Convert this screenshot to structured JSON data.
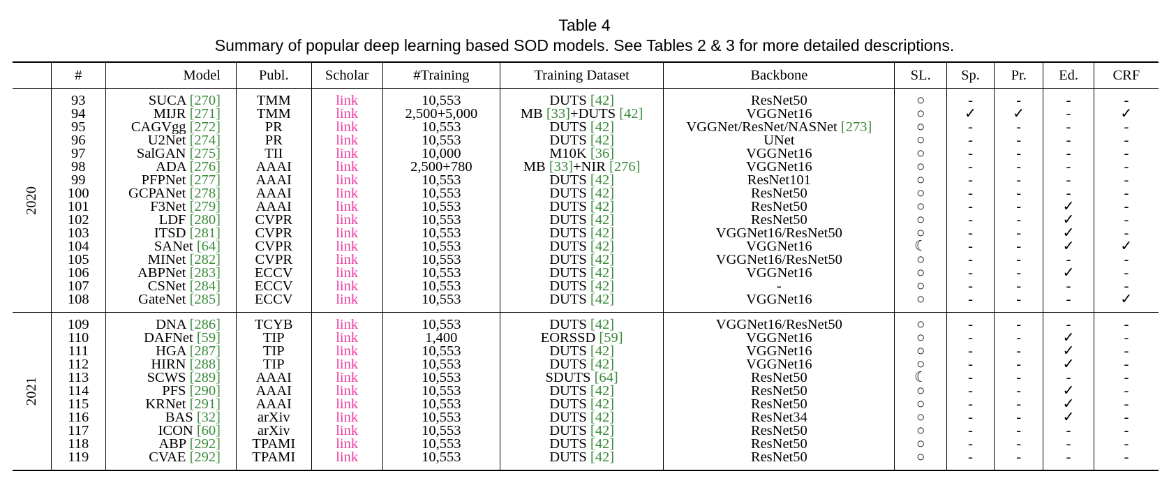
{
  "caption": {
    "title": "Table 4",
    "subtitle": "Summary of popular deep learning based SOD models. See Tables 2 & 3 for more detailed descriptions."
  },
  "headers": [
    "#",
    "Model",
    "Publ.",
    "Scholar",
    "#Training",
    "Training Dataset",
    "Backbone",
    "SL.",
    "Sp.",
    "Pr.",
    "Ed.",
    "CRF"
  ],
  "groups": [
    {
      "year": "2020",
      "rows": [
        {
          "n": "93",
          "model": "SUCA",
          "ref": "270",
          "publ": "TMM",
          "scholar": "link",
          "training": "10,553",
          "dataset": [
            [
              "DUTS ",
              ""
            ],
            [
              "[42]",
              "r"
            ]
          ],
          "backbone": [
            [
              "ResNet50",
              ""
            ]
          ],
          "sl": "○",
          "sp": "-",
          "pr": "-",
          "ed": "-",
          "crf": "-"
        },
        {
          "n": "94",
          "model": "MIJR",
          "ref": "271",
          "publ": "TMM",
          "scholar": "link",
          "training": "2,500+5,000",
          "dataset": [
            [
              "MB ",
              ""
            ],
            [
              "[33]",
              "r"
            ],
            [
              "+DUTS ",
              ""
            ],
            [
              "[42]",
              "r"
            ]
          ],
          "backbone": [
            [
              "VGGNet16",
              ""
            ]
          ],
          "sl": "○",
          "sp": "✓",
          "pr": "✓",
          "ed": "-",
          "crf": "✓"
        },
        {
          "n": "95",
          "model": "CAGVgg",
          "ref": "272",
          "publ": "PR",
          "scholar": "link",
          "training": "10,553",
          "dataset": [
            [
              "DUTS ",
              ""
            ],
            [
              "[42]",
              "r"
            ]
          ],
          "backbone": [
            [
              "VGGNet/ResNet/NASNet ",
              ""
            ],
            [
              "[273]",
              "r"
            ]
          ],
          "sl": "○",
          "sp": "-",
          "pr": "-",
          "ed": "-",
          "crf": "-"
        },
        {
          "n": "96",
          "model": "U2Net",
          "ref": "274",
          "publ": "PR",
          "scholar": "link",
          "training": "10,553",
          "dataset": [
            [
              "DUTS ",
              ""
            ],
            [
              "[42]",
              "r"
            ]
          ],
          "backbone": [
            [
              "UNet",
              ""
            ]
          ],
          "sl": "○",
          "sp": "-",
          "pr": "-",
          "ed": "-",
          "crf": "-"
        },
        {
          "n": "97",
          "model": "SalGAN",
          "ref": "275",
          "publ": "TII",
          "scholar": "link",
          "training": "10,000",
          "dataset": [
            [
              "M10K ",
              ""
            ],
            [
              "[36]",
              "r"
            ]
          ],
          "backbone": [
            [
              "VGGNet16",
              ""
            ]
          ],
          "sl": "○",
          "sp": "-",
          "pr": "-",
          "ed": "-",
          "crf": "-"
        },
        {
          "n": "98",
          "model": "ADA",
          "ref": "276",
          "publ": "AAAI",
          "scholar": "link",
          "training": "2,500+780",
          "dataset": [
            [
              "MB ",
              ""
            ],
            [
              "[33]",
              "r"
            ],
            [
              "+NIR ",
              ""
            ],
            [
              "[276]",
              "r"
            ]
          ],
          "backbone": [
            [
              "VGGNet16",
              ""
            ]
          ],
          "sl": "○",
          "sp": "-",
          "pr": "-",
          "ed": "-",
          "crf": "-"
        },
        {
          "n": "99",
          "model": "PFPNet",
          "ref": "277",
          "publ": "AAAI",
          "scholar": "link",
          "training": "10,553",
          "dataset": [
            [
              "DUTS ",
              ""
            ],
            [
              "[42]",
              "r"
            ]
          ],
          "backbone": [
            [
              "ResNet101",
              ""
            ]
          ],
          "sl": "○",
          "sp": "-",
          "pr": "-",
          "ed": "-",
          "crf": "-"
        },
        {
          "n": "100",
          "model": "GCPANet",
          "ref": "278",
          "publ": "AAAI",
          "scholar": "link",
          "training": "10,553",
          "dataset": [
            [
              "DUTS ",
              ""
            ],
            [
              "[42]",
              "r"
            ]
          ],
          "backbone": [
            [
              "ResNet50",
              ""
            ]
          ],
          "sl": "○",
          "sp": "-",
          "pr": "-",
          "ed": "-",
          "crf": "-"
        },
        {
          "n": "101",
          "model": "F3Net",
          "ref": "279",
          "publ": "AAAI",
          "scholar": "link",
          "training": "10,553",
          "dataset": [
            [
              "DUTS ",
              ""
            ],
            [
              "[42]",
              "r"
            ]
          ],
          "backbone": [
            [
              "ResNet50",
              ""
            ]
          ],
          "sl": "○",
          "sp": "-",
          "pr": "-",
          "ed": "✓",
          "crf": "-"
        },
        {
          "n": "102",
          "model": "LDF",
          "ref": "280",
          "publ": "CVPR",
          "scholar": "link",
          "training": "10,553",
          "dataset": [
            [
              "DUTS ",
              ""
            ],
            [
              "[42]",
              "r"
            ]
          ],
          "backbone": [
            [
              "ResNet50",
              ""
            ]
          ],
          "sl": "○",
          "sp": "-",
          "pr": "-",
          "ed": "✓",
          "crf": "-"
        },
        {
          "n": "103",
          "model": "ITSD",
          "ref": "281",
          "publ": "CVPR",
          "scholar": "link",
          "training": "10,553",
          "dataset": [
            [
              "DUTS ",
              ""
            ],
            [
              "[42]",
              "r"
            ]
          ],
          "backbone": [
            [
              "VGGNet16/ResNet50",
              ""
            ]
          ],
          "sl": "○",
          "sp": "-",
          "pr": "-",
          "ed": "✓",
          "crf": "-"
        },
        {
          "n": "104",
          "model": "SANet",
          "ref": "64",
          "publ": "CVPR",
          "scholar": "link",
          "training": "10,553",
          "dataset": [
            [
              "DUTS ",
              ""
            ],
            [
              "[42]",
              "r"
            ]
          ],
          "backbone": [
            [
              "VGGNet16",
              ""
            ]
          ],
          "sl": "☾",
          "sp": "-",
          "pr": "-",
          "ed": "✓",
          "crf": "✓"
        },
        {
          "n": "105",
          "model": "MINet",
          "ref": "282",
          "publ": "CVPR",
          "scholar": "link",
          "training": "10,553",
          "dataset": [
            [
              "DUTS ",
              ""
            ],
            [
              "[42]",
              "r"
            ]
          ],
          "backbone": [
            [
              "VGGNet16/ResNet50",
              ""
            ]
          ],
          "sl": "○",
          "sp": "-",
          "pr": "-",
          "ed": "-",
          "crf": "-"
        },
        {
          "n": "106",
          "model": "ABPNet",
          "ref": "283",
          "publ": "ECCV",
          "scholar": "link",
          "training": "10,553",
          "dataset": [
            [
              "DUTS ",
              ""
            ],
            [
              "[42]",
              "r"
            ]
          ],
          "backbone": [
            [
              "VGGNet16",
              ""
            ]
          ],
          "sl": "○",
          "sp": "-",
          "pr": "-",
          "ed": "✓",
          "crf": "-"
        },
        {
          "n": "107",
          "model": "CSNet",
          "ref": "284",
          "publ": "ECCV",
          "scholar": "link",
          "training": "10,553",
          "dataset": [
            [
              "DUTS ",
              ""
            ],
            [
              "[42]",
              "r"
            ]
          ],
          "backbone": [
            [
              "-",
              ""
            ]
          ],
          "sl": "○",
          "sp": "-",
          "pr": "-",
          "ed": "-",
          "crf": "-"
        },
        {
          "n": "108",
          "model": "GateNet",
          "ref": "285",
          "publ": "ECCV",
          "scholar": "link",
          "training": "10,553",
          "dataset": [
            [
              "DUTS ",
              ""
            ],
            [
              "[42]",
              "r"
            ]
          ],
          "backbone": [
            [
              "VGGNet16",
              ""
            ]
          ],
          "sl": "○",
          "sp": "-",
          "pr": "-",
          "ed": "-",
          "crf": "✓"
        }
      ]
    },
    {
      "year": "2021",
      "rows": [
        {
          "n": "109",
          "model": "DNA",
          "ref": "286",
          "publ": "TCYB",
          "scholar": "link",
          "training": "10,553",
          "dataset": [
            [
              "DUTS ",
              ""
            ],
            [
              "[42]",
              "r"
            ]
          ],
          "backbone": [
            [
              "VGGNet16/ResNet50",
              ""
            ]
          ],
          "sl": "○",
          "sp": "-",
          "pr": "-",
          "ed": "-",
          "crf": "-"
        },
        {
          "n": "110",
          "model": "DAFNet",
          "ref": "59",
          "publ": "TIP",
          "scholar": "link",
          "training": "1,400",
          "dataset": [
            [
              "EORSSD ",
              ""
            ],
            [
              "[59]",
              "r"
            ]
          ],
          "backbone": [
            [
              "VGGNet16",
              ""
            ]
          ],
          "sl": "○",
          "sp": "-",
          "pr": "-",
          "ed": "✓",
          "crf": "-"
        },
        {
          "n": "111",
          "model": "HGA",
          "ref": "287",
          "publ": "TIP",
          "scholar": "link",
          "training": "10,553",
          "dataset": [
            [
              "DUTS ",
              ""
            ],
            [
              "[42]",
              "r"
            ]
          ],
          "backbone": [
            [
              "VGGNet16",
              ""
            ]
          ],
          "sl": "○",
          "sp": "-",
          "pr": "-",
          "ed": "✓",
          "crf": "-"
        },
        {
          "n": "112",
          "model": "HIRN",
          "ref": "288",
          "publ": "TIP",
          "scholar": "link",
          "training": "10,553",
          "dataset": [
            [
              "DUTS ",
              ""
            ],
            [
              "[42]",
              "r"
            ]
          ],
          "backbone": [
            [
              "VGGNet16",
              ""
            ]
          ],
          "sl": "○",
          "sp": "-",
          "pr": "-",
          "ed": "✓",
          "crf": "-"
        },
        {
          "n": "113",
          "model": "SCWS",
          "ref": "289",
          "publ": "AAAI",
          "scholar": "link",
          "training": "10,553",
          "dataset": [
            [
              "SDUTS ",
              ""
            ],
            [
              "[64]",
              "r"
            ]
          ],
          "backbone": [
            [
              "ResNet50",
              ""
            ]
          ],
          "sl": "☾",
          "sp": "-",
          "pr": "-",
          "ed": "-",
          "crf": "-"
        },
        {
          "n": "114",
          "model": "PFS",
          "ref": "290",
          "publ": "AAAI",
          "scholar": "link",
          "training": "10,553",
          "dataset": [
            [
              "DUTS ",
              ""
            ],
            [
              "[42]",
              "r"
            ]
          ],
          "backbone": [
            [
              "ResNet50",
              ""
            ]
          ],
          "sl": "○",
          "sp": "-",
          "pr": "-",
          "ed": "✓",
          "crf": "-"
        },
        {
          "n": "115",
          "model": "KRNet",
          "ref": "291",
          "publ": "AAAI",
          "scholar": "link",
          "training": "10,553",
          "dataset": [
            [
              "DUTS ",
              ""
            ],
            [
              "[42]",
              "r"
            ]
          ],
          "backbone": [
            [
              "ResNet50",
              ""
            ]
          ],
          "sl": "○",
          "sp": "-",
          "pr": "-",
          "ed": "✓",
          "crf": "-"
        },
        {
          "n": "116",
          "model": "BAS",
          "ref": "32",
          "publ": "arXiv",
          "scholar": "link",
          "training": "10,553",
          "dataset": [
            [
              "DUTS ",
              ""
            ],
            [
              "[42]",
              "r"
            ]
          ],
          "backbone": [
            [
              "ResNet34",
              ""
            ]
          ],
          "sl": "○",
          "sp": "-",
          "pr": "-",
          "ed": "✓",
          "crf": "-"
        },
        {
          "n": "117",
          "model": "ICON",
          "ref": "60",
          "publ": "arXiv",
          "scholar": "link",
          "training": "10,553",
          "dataset": [
            [
              "DUTS ",
              ""
            ],
            [
              "[42]",
              "r"
            ]
          ],
          "backbone": [
            [
              "ResNet50",
              ""
            ]
          ],
          "sl": "○",
          "sp": "-",
          "pr": "-",
          "ed": "-",
          "crf": "-"
        },
        {
          "n": "118",
          "model": "ABP",
          "ref": "292",
          "publ": "TPAMI",
          "scholar": "link",
          "training": "10,553",
          "dataset": [
            [
              "DUTS ",
              ""
            ],
            [
              "[42]",
              "r"
            ]
          ],
          "backbone": [
            [
              "ResNet50",
              ""
            ]
          ],
          "sl": "○",
          "sp": "-",
          "pr": "-",
          "ed": "-",
          "crf": "-"
        },
        {
          "n": "119",
          "model": "CVAE",
          "ref": "292",
          "publ": "TPAMI",
          "scholar": "link",
          "training": "10,553",
          "dataset": [
            [
              "DUTS ",
              ""
            ],
            [
              "[42]",
              "r"
            ]
          ],
          "backbone": [
            [
              "ResNet50",
              ""
            ]
          ],
          "sl": "○",
          "sp": "-",
          "pr": "-",
          "ed": "-",
          "crf": "-"
        }
      ]
    }
  ]
}
